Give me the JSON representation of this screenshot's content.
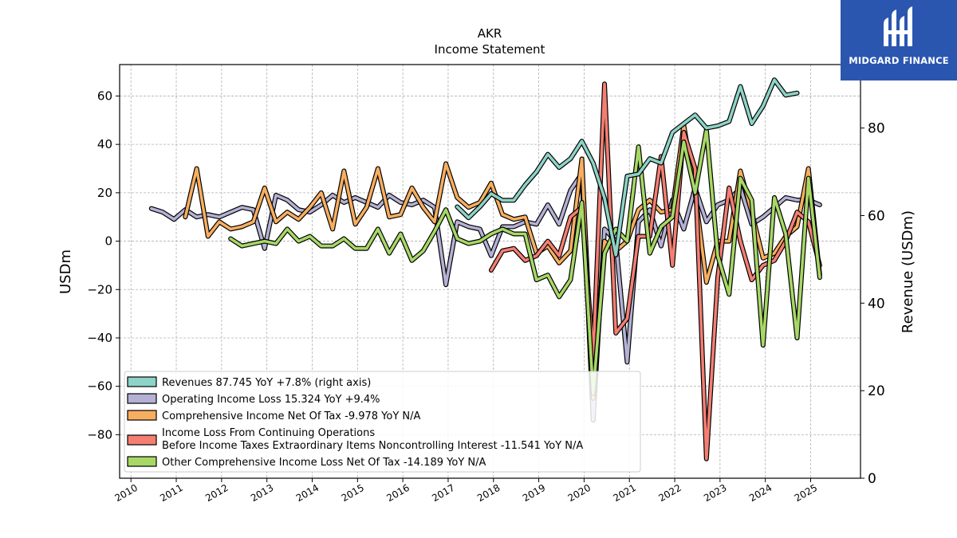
{
  "chart_data": {
    "type": "line",
    "title": "AKR",
    "subtitle": "Income Statement",
    "ylabel": "USDm",
    "ylabel_right": "Revenue (USDm)",
    "ylim": [
      -98,
      73
    ],
    "ylim_right": [
      0,
      94.5
    ],
    "xlim": [
      2009.75,
      2026.1
    ],
    "grid": true,
    "legend_position": "lower-left",
    "x_ticks": [
      "2010",
      "2011",
      "2012",
      "2013",
      "2014",
      "2015",
      "2016",
      "2017",
      "2018",
      "2019",
      "2020",
      "2021",
      "2022",
      "2023",
      "2024",
      "2025"
    ],
    "y_ticks_left": [
      "60",
      "40",
      "20",
      "0",
      "−20",
      "−40",
      "−60",
      "−80"
    ],
    "y_ticks_right": [
      "80",
      "60",
      "40",
      "20",
      "0"
    ],
    "series": [
      {
        "name": "Operating Income Loss",
        "legend": "Operating Income Loss  15.324 YoY +9.4%",
        "color": "#b4b1d5",
        "axis": "left",
        "points": [
          [
            2010.45,
            13.5
          ],
          [
            2010.7,
            12
          ],
          [
            2010.95,
            9
          ],
          [
            2011.2,
            13
          ],
          [
            2011.45,
            10
          ],
          [
            2011.7,
            11
          ],
          [
            2011.95,
            10
          ],
          [
            2012.2,
            12
          ],
          [
            2012.45,
            14
          ],
          [
            2012.7,
            13
          ],
          [
            2012.95,
            -3
          ],
          [
            2013.2,
            19
          ],
          [
            2013.45,
            17
          ],
          [
            2013.7,
            13
          ],
          [
            2013.95,
            12
          ],
          [
            2014.2,
            15
          ],
          [
            2014.45,
            19
          ],
          [
            2014.7,
            16
          ],
          [
            2014.95,
            18
          ],
          [
            2015.2,
            16
          ],
          [
            2015.45,
            14
          ],
          [
            2015.7,
            19
          ],
          [
            2015.95,
            16
          ],
          [
            2016.2,
            15
          ],
          [
            2016.45,
            17
          ],
          [
            2016.7,
            14
          ],
          [
            2016.95,
            -18
          ],
          [
            2017.2,
            8
          ],
          [
            2017.45,
            6
          ],
          [
            2017.7,
            5
          ],
          [
            2017.95,
            -6
          ],
          [
            2018.2,
            6
          ],
          [
            2018.45,
            6
          ],
          [
            2018.7,
            8
          ],
          [
            2018.95,
            7
          ],
          [
            2019.2,
            15
          ],
          [
            2019.45,
            7
          ],
          [
            2019.7,
            21
          ],
          [
            2019.95,
            28
          ],
          [
            2020.2,
            -74
          ],
          [
            2020.45,
            5
          ],
          [
            2020.7,
            0
          ],
          [
            2020.95,
            -50
          ],
          [
            2021.2,
            8
          ],
          [
            2021.45,
            13
          ],
          [
            2021.7,
            -2
          ],
          [
            2021.95,
            17
          ],
          [
            2022.2,
            5
          ],
          [
            2022.45,
            22
          ],
          [
            2022.7,
            8
          ],
          [
            2022.95,
            15
          ],
          [
            2023.2,
            17
          ],
          [
            2023.45,
            22
          ],
          [
            2023.7,
            7
          ],
          [
            2023.95,
            10
          ],
          [
            2024.2,
            14
          ],
          [
            2024.45,
            18
          ],
          [
            2024.7,
            17
          ],
          [
            2024.95,
            17
          ],
          [
            2025.2,
            15
          ]
        ]
      },
      {
        "name": "Comprehensive Income Net Of Tax",
        "legend": "Comprehensive Income Net Of Tax  -9.978 YoY N/A",
        "color": "#f8ae60",
        "axis": "left",
        "points": [
          [
            2011.2,
            10
          ],
          [
            2011.45,
            30
          ],
          [
            2011.7,
            2
          ],
          [
            2011.95,
            8
          ],
          [
            2012.2,
            5
          ],
          [
            2012.45,
            6
          ],
          [
            2012.7,
            8
          ],
          [
            2012.95,
            22
          ],
          [
            2013.2,
            8
          ],
          [
            2013.45,
            12
          ],
          [
            2013.7,
            9
          ],
          [
            2013.95,
            14
          ],
          [
            2014.2,
            20
          ],
          [
            2014.45,
            5
          ],
          [
            2014.7,
            29
          ],
          [
            2014.95,
            7
          ],
          [
            2015.2,
            14
          ],
          [
            2015.45,
            30
          ],
          [
            2015.7,
            10
          ],
          [
            2015.95,
            11
          ],
          [
            2016.2,
            22
          ],
          [
            2016.45,
            14
          ],
          [
            2016.7,
            8
          ],
          [
            2016.95,
            32
          ],
          [
            2017.2,
            18
          ],
          [
            2017.45,
            14
          ],
          [
            2017.7,
            16
          ],
          [
            2017.95,
            24
          ],
          [
            2018.2,
            11
          ],
          [
            2018.45,
            9
          ],
          [
            2018.7,
            10
          ],
          [
            2018.95,
            -5
          ],
          [
            2019.2,
            -2
          ],
          [
            2019.45,
            -9
          ],
          [
            2019.7,
            -4
          ],
          [
            2019.95,
            34
          ],
          [
            2020.2,
            -65
          ],
          [
            2020.45,
            0
          ],
          [
            2020.7,
            -4
          ],
          [
            2020.95,
            0
          ],
          [
            2021.2,
            13
          ],
          [
            2021.45,
            17
          ],
          [
            2021.7,
            12
          ],
          [
            2021.95,
            13
          ],
          [
            2022.2,
            48
          ],
          [
            2022.45,
            20
          ],
          [
            2022.7,
            -17
          ],
          [
            2022.95,
            0
          ],
          [
            2023.2,
            0
          ],
          [
            2023.45,
            29
          ],
          [
            2023.7,
            12
          ],
          [
            2023.95,
            -7
          ],
          [
            2024.2,
            -5
          ],
          [
            2024.45,
            2
          ],
          [
            2024.7,
            6
          ],
          [
            2024.95,
            30
          ],
          [
            2025.2,
            -14
          ]
        ]
      },
      {
        "name": "Income Loss From Continuing Operations Before Income Taxes Extraordinary Items Noncontrolling Interest",
        "legend_line1": "Income Loss From Continuing Operations",
        "legend_line2": "Before Income Taxes Extraordinary Items Noncontrolling Interest  -11.541 YoY N/A",
        "color": "#f47e72",
        "axis": "left",
        "points": [
          [
            2017.95,
            -12
          ],
          [
            2018.2,
            -4
          ],
          [
            2018.45,
            -3
          ],
          [
            2018.7,
            -8
          ],
          [
            2018.95,
            -6
          ],
          [
            2019.2,
            0
          ],
          [
            2019.45,
            -6
          ],
          [
            2019.7,
            10
          ],
          [
            2019.95,
            14
          ],
          [
            2020.2,
            -48
          ],
          [
            2020.45,
            65
          ],
          [
            2020.7,
            -38
          ],
          [
            2020.95,
            -32
          ],
          [
            2021.2,
            2
          ],
          [
            2021.45,
            2
          ],
          [
            2021.7,
            35
          ],
          [
            2021.95,
            -10
          ],
          [
            2022.2,
            45
          ],
          [
            2022.45,
            30
          ],
          [
            2022.7,
            -90
          ],
          [
            2022.95,
            -15
          ],
          [
            2023.2,
            22
          ],
          [
            2023.45,
            0
          ],
          [
            2023.7,
            -16
          ],
          [
            2023.95,
            -10
          ],
          [
            2024.2,
            -8
          ],
          [
            2024.45,
            0
          ],
          [
            2024.7,
            12
          ],
          [
            2024.95,
            8
          ],
          [
            2025.2,
            -10
          ]
        ]
      },
      {
        "name": "Other Comprehensive Income Loss Net Of Tax",
        "legend": "Other Comprehensive Income Loss Net Of Tax  -14.189 YoY N/A",
        "color": "#a7d866",
        "axis": "left",
        "points": [
          [
            2012.2,
            1
          ],
          [
            2012.45,
            -2
          ],
          [
            2012.7,
            -1
          ],
          [
            2012.95,
            0
          ],
          [
            2013.2,
            -1
          ],
          [
            2013.45,
            5
          ],
          [
            2013.7,
            0
          ],
          [
            2013.95,
            2
          ],
          [
            2014.2,
            -2
          ],
          [
            2014.45,
            -2
          ],
          [
            2014.7,
            1
          ],
          [
            2014.95,
            -3
          ],
          [
            2015.2,
            -3
          ],
          [
            2015.45,
            5
          ],
          [
            2015.7,
            -5
          ],
          [
            2015.95,
            3
          ],
          [
            2016.2,
            -8
          ],
          [
            2016.45,
            -4
          ],
          [
            2016.7,
            4
          ],
          [
            2016.95,
            13
          ],
          [
            2017.2,
            1
          ],
          [
            2017.45,
            -1
          ],
          [
            2017.7,
            0
          ],
          [
            2017.95,
            3
          ],
          [
            2018.2,
            5
          ],
          [
            2018.45,
            3
          ],
          [
            2018.7,
            3
          ],
          [
            2018.95,
            -16
          ],
          [
            2019.2,
            -14
          ],
          [
            2019.45,
            -23
          ],
          [
            2019.7,
            -16
          ],
          [
            2019.95,
            16
          ],
          [
            2020.2,
            -63
          ],
          [
            2020.45,
            -5
          ],
          [
            2020.7,
            5
          ],
          [
            2020.95,
            0
          ],
          [
            2021.2,
            39
          ],
          [
            2021.45,
            -5
          ],
          [
            2021.7,
            6
          ],
          [
            2021.95,
            10
          ],
          [
            2022.2,
            41
          ],
          [
            2022.45,
            20
          ],
          [
            2022.7,
            46
          ],
          [
            2022.95,
            -6
          ],
          [
            2023.2,
            -22
          ],
          [
            2023.45,
            26
          ],
          [
            2023.7,
            17
          ],
          [
            2023.95,
            -43
          ],
          [
            2024.2,
            18
          ],
          [
            2024.45,
            3
          ],
          [
            2024.7,
            -40
          ],
          [
            2024.95,
            26
          ],
          [
            2025.2,
            -15
          ]
        ]
      },
      {
        "name": "Revenues",
        "legend": "Revenues  87.745 YoY +7.8% (right axis)",
        "color": "#8dd3c7",
        "axis": "right",
        "points": [
          [
            2017.2,
            62
          ],
          [
            2017.45,
            59.5
          ],
          [
            2017.7,
            62
          ],
          [
            2017.95,
            65
          ],
          [
            2018.2,
            63.5
          ],
          [
            2018.45,
            63.5
          ],
          [
            2018.7,
            67
          ],
          [
            2018.95,
            70
          ],
          [
            2019.2,
            74
          ],
          [
            2019.45,
            71
          ],
          [
            2019.7,
            73
          ],
          [
            2019.95,
            77
          ],
          [
            2020.2,
            72
          ],
          [
            2020.45,
            64
          ],
          [
            2020.7,
            51
          ],
          [
            2020.95,
            69
          ],
          [
            2021.2,
            69.5
          ],
          [
            2021.45,
            73
          ],
          [
            2021.7,
            72
          ],
          [
            2021.95,
            79
          ],
          [
            2022.2,
            81
          ],
          [
            2022.45,
            83
          ],
          [
            2022.7,
            80
          ],
          [
            2022.95,
            80.5
          ],
          [
            2023.2,
            81.5
          ],
          [
            2023.45,
            89.5
          ],
          [
            2023.7,
            81
          ],
          [
            2023.95,
            85
          ],
          [
            2024.2,
            91
          ],
          [
            2024.45,
            87.5
          ],
          [
            2024.7,
            88
          ]
        ]
      }
    ],
    "legend_order": [
      4,
      0,
      1,
      2,
      3
    ]
  },
  "brand": {
    "name": "MIDGARD FINANCE",
    "color": "#2a56b0"
  }
}
